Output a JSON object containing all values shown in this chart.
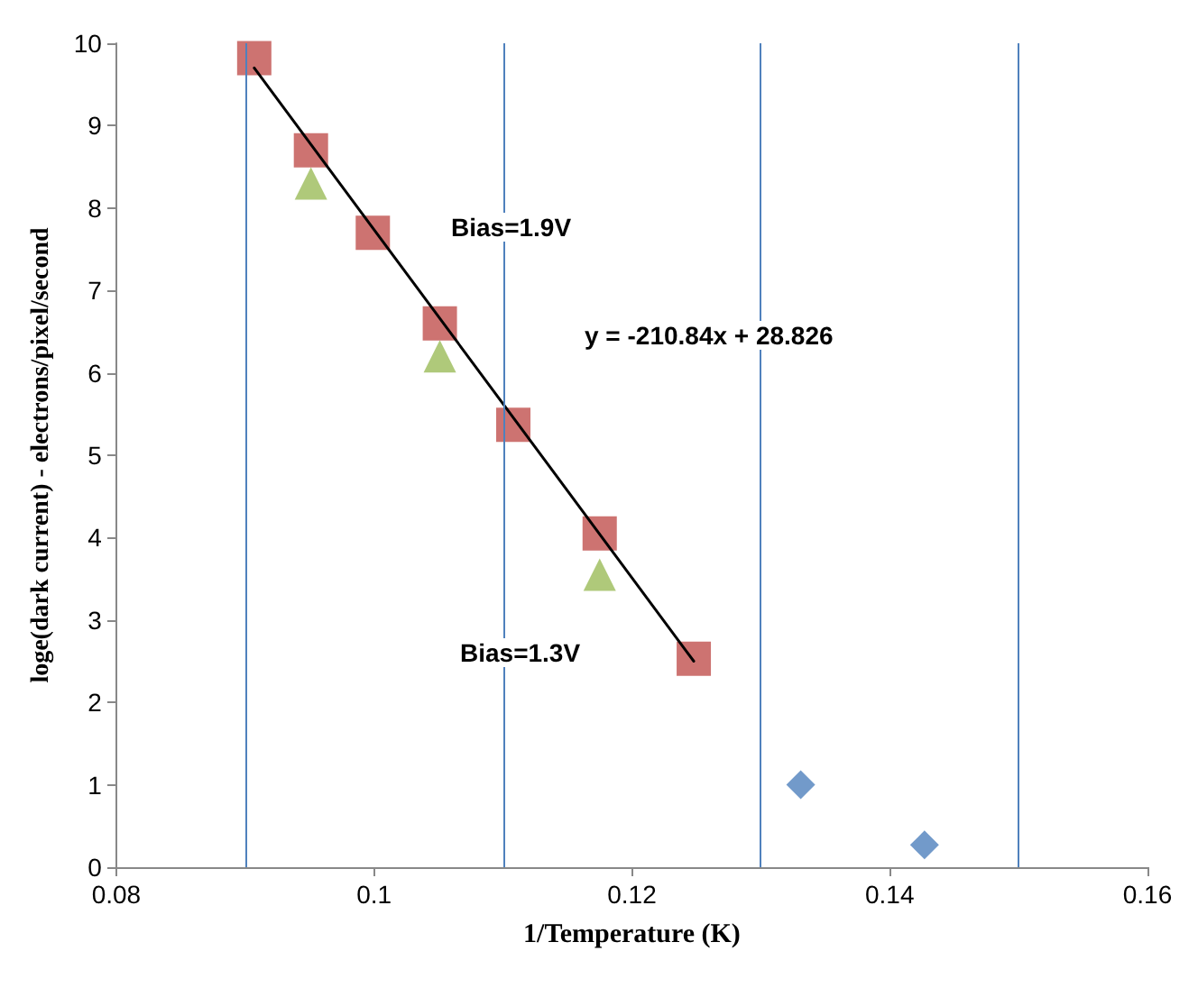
{
  "chart_data": {
    "type": "scatter",
    "xlabel": "1/Temperature (K)",
    "ylabel": "loge(dark current) - electrons/pixel/second",
    "xlim": [
      0.08,
      0.16
    ],
    "xticks": [
      0.08,
      0.1,
      0.12,
      0.14,
      0.16
    ],
    "ylim": [
      0,
      10
    ],
    "yticks": [
      0,
      1,
      2,
      3,
      4,
      5,
      6,
      7,
      8,
      9,
      10
    ],
    "grid": false,
    "series": [
      {
        "marker": "square",
        "color": "#c0504d",
        "x": [
          0.0907,
          0.0951,
          0.0999,
          0.1051,
          0.1108,
          0.1175,
          0.1248
        ],
        "values": [
          9.82,
          8.7,
          7.7,
          6.6,
          5.37,
          4.05,
          2.53
        ]
      },
      {
        "marker": "triangle",
        "color": "#9bbb59",
        "x": [
          0.0951,
          0.1051,
          0.1175
        ],
        "values": [
          8.3,
          6.2,
          3.55
        ]
      },
      {
        "marker": "diamond",
        "color": "#4f81bd",
        "x": [
          0.1331,
          0.1427
        ],
        "values": [
          1.0,
          0.27
        ]
      },
      {
        "type": "line",
        "marker": "none",
        "line_style": "solid",
        "color": "#000000",
        "x": [
          0.0907,
          0.1248
        ],
        "values": [
          9.7,
          2.5
        ]
      }
    ],
    "ref_lines": [
      {
        "axis": "x",
        "value": 0.09,
        "label": null,
        "color": "#4f81bd"
      },
      {
        "axis": "x",
        "value": 0.11,
        "label": null,
        "color": "#4f81bd"
      },
      {
        "axis": "x",
        "value": 0.13,
        "label": null,
        "color": "#4f81bd"
      },
      {
        "axis": "x",
        "value": 0.15,
        "label": null,
        "color": "#4f81bd"
      }
    ],
    "annotations": [
      "Bias=1.9V",
      "y = -210.84x + 28.826",
      "Bias=1.3V"
    ]
  }
}
